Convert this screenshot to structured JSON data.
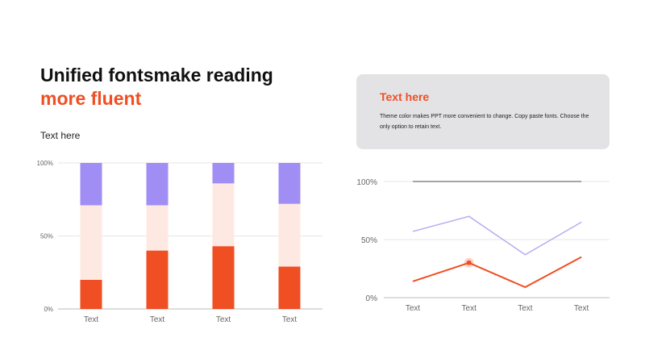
{
  "heading": {
    "line1": "Unified fontsmake reading",
    "line2": "more fluent",
    "subtext": "Text here"
  },
  "card": {
    "title": "Text here",
    "body": "Theme color makes PPT more convenient to change. Copy paste fonts. Choose the only option to retain text."
  },
  "colors": {
    "accent": "#f04e23",
    "light": "#fde9e2",
    "purple": "#a08ef5",
    "lavender": "#b9abf0",
    "gray": "#888888"
  },
  "chart_data": [
    {
      "type": "bar",
      "stacked": true,
      "categories": [
        "Text",
        "Text",
        "Text",
        "Text"
      ],
      "series": [
        {
          "values": [
            20,
            40,
            43,
            29
          ]
        },
        {
          "values": [
            51,
            31,
            43,
            43
          ]
        },
        {
          "values": [
            29,
            29,
            14,
            28
          ]
        }
      ],
      "ylim": [
        0,
        100
      ],
      "yticks": [
        "0%",
        "50%",
        "100%"
      ],
      "grid": true
    },
    {
      "type": "line",
      "categories": [
        "Text",
        "Text",
        "Text",
        "Text"
      ],
      "series": [
        {
          "values": [
            100,
            100,
            100,
            100
          ]
        },
        {
          "values": [
            57,
            70,
            37,
            65
          ]
        },
        {
          "values": [
            14,
            30,
            9,
            35
          ]
        }
      ],
      "highlight": {
        "series": 2,
        "index": 1
      },
      "ylim": [
        0,
        100
      ],
      "yticks": [
        "0%",
        "50%",
        "100%"
      ],
      "grid": true
    }
  ]
}
